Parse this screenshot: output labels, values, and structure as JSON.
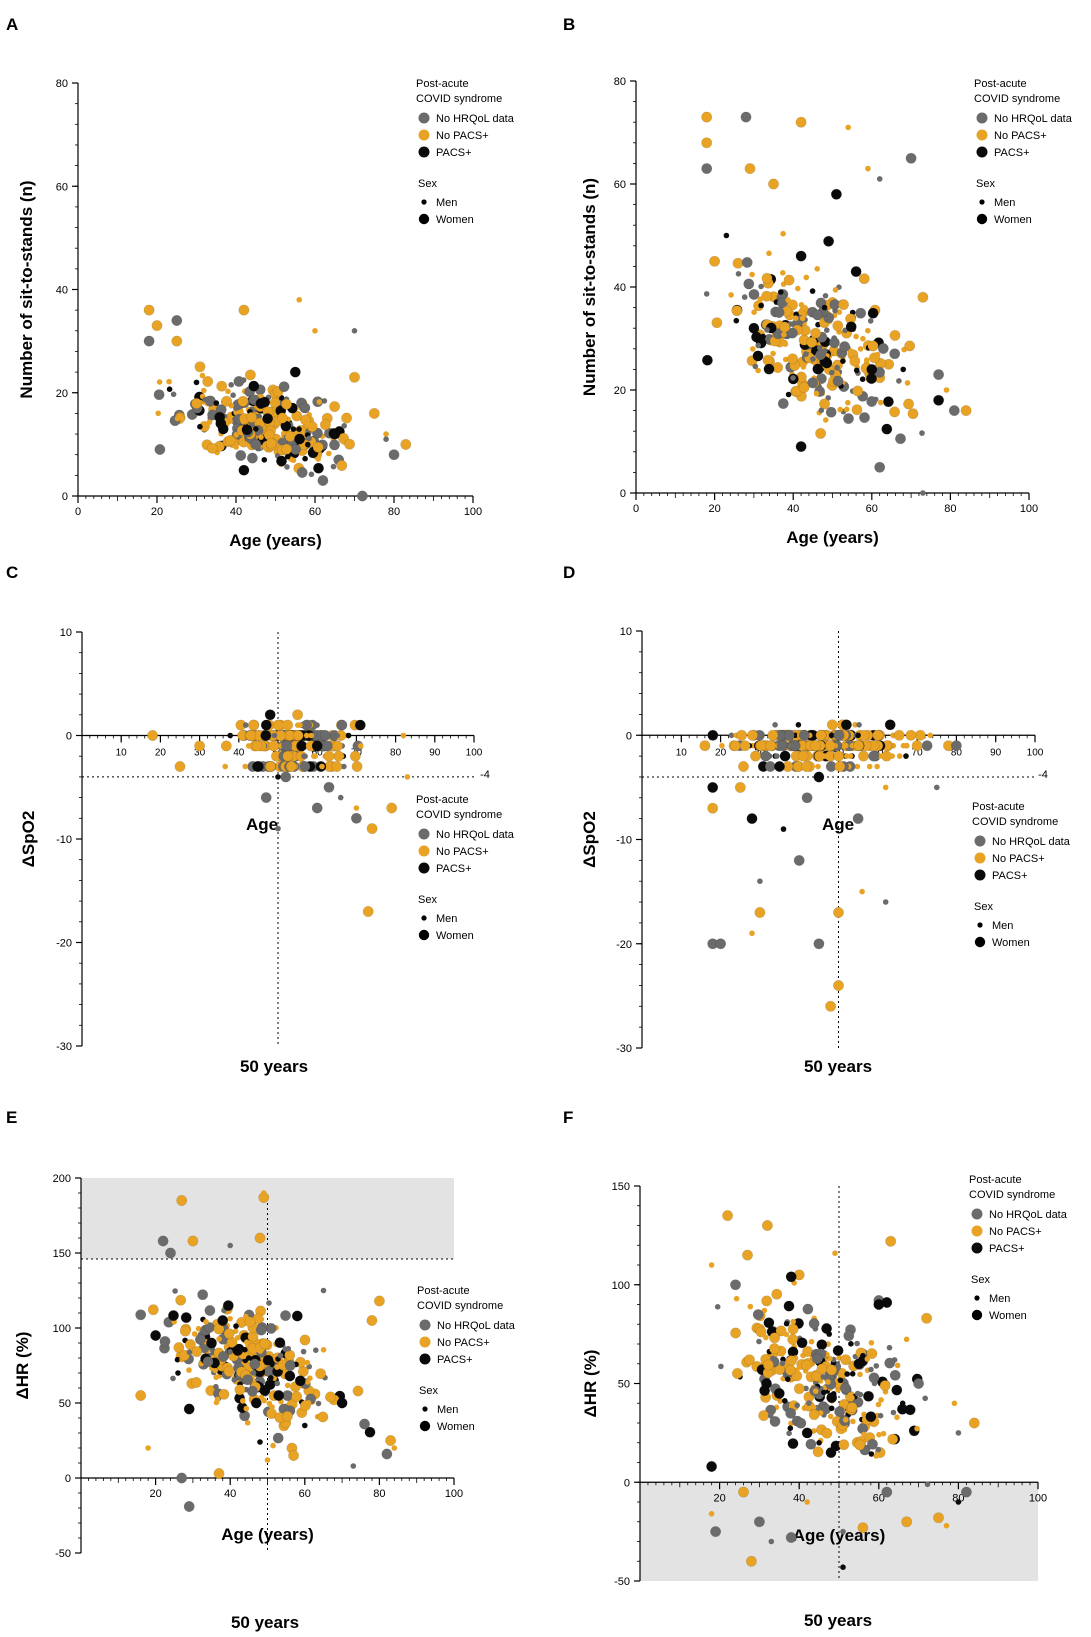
{
  "figure": {
    "colors": {
      "no_hrqol": "#6b6b6b",
      "no_pacs": "#e8a325",
      "pacs": "#0a0a0a",
      "shade": "#e3e3e3"
    }
  },
  "chart_data": [
    {
      "panel": "A",
      "type": "scatter",
      "xlabel": "Age (years)",
      "ylabel": "Number of sit-to-stands (n)",
      "xlim": [
        0,
        100
      ],
      "ylim": [
        0,
        80
      ],
      "xticks": [
        0,
        20,
        40,
        60,
        80,
        100
      ],
      "yticks": [
        0,
        20,
        40,
        60,
        80
      ],
      "legend": {
        "title_line1": "Post-acute",
        "title_line2": "COVID syndrome",
        "groups": [
          "No HRQoL data",
          "No PACS+",
          "PACS+"
        ],
        "sex_title": "Sex",
        "sex": [
          "Men",
          "Women"
        ],
        "position": "top-right"
      },
      "cloud": {
        "ageMean": 46,
        "ageSd": 15,
        "ageMin": 16,
        "ageMax": 84,
        "base": 22,
        "slope": -0.17,
        "noise": 5.5
      },
      "series": [
        {
          "name": "No PACS+",
          "points": [
            [
              18,
              36
            ],
            [
              42,
              36
            ],
            [
              56,
              38
            ],
            [
              20,
              33
            ],
            [
              25,
              30
            ],
            [
              60,
              32
            ],
            [
              70,
              23
            ],
            [
              75,
              16
            ],
            [
              78,
              12
            ],
            [
              83,
              10
            ]
          ]
        },
        {
          "name": "No HRQoL data",
          "points": [
            [
              18,
              30
            ],
            [
              25,
              34
            ],
            [
              70,
              32
            ],
            [
              62,
              3
            ],
            [
              72,
              0
            ],
            [
              78,
              11
            ],
            [
              80,
              8
            ],
            [
              45,
              10
            ],
            [
              40,
              17
            ]
          ]
        },
        {
          "name": "PACS+",
          "points": [
            [
              42,
              5
            ],
            [
              55,
              24
            ],
            [
              30,
              22
            ],
            [
              48,
              15
            ],
            [
              65,
              12
            ],
            [
              35,
              18
            ]
          ]
        }
      ]
    },
    {
      "panel": "B",
      "type": "scatter",
      "xlabel": "Age (years)",
      "ylabel": "Number of sit-to-stands (n)",
      "xlim": [
        0,
        100
      ],
      "ylim": [
        0,
        80
      ],
      "xticks": [
        0,
        20,
        40,
        60,
        80,
        100
      ],
      "yticks": [
        0,
        20,
        40,
        60,
        80
      ],
      "legend": {
        "title_line1": "Post-acute",
        "title_line2": "COVID syndrome",
        "groups": [
          "No HRQoL data",
          "No PACS+",
          "PACS+"
        ],
        "sex_title": "Sex",
        "sex": [
          "Men",
          "Women"
        ],
        "position": "top-right"
      },
      "cloud": {
        "ageMean": 46,
        "ageSd": 15,
        "ageMin": 16,
        "ageMax": 84,
        "base": 44,
        "slope": -0.35,
        "noise": 9
      },
      "series": [
        {
          "name": "No PACS+",
          "points": [
            [
              18,
              73
            ],
            [
              42,
              72
            ],
            [
              54,
              71
            ],
            [
              18,
              68
            ],
            [
              29,
              63
            ],
            [
              59,
              63
            ],
            [
              35,
              60
            ],
            [
              73,
              38
            ],
            [
              79,
              20
            ],
            [
              84,
              16
            ],
            [
              20,
              45
            ]
          ]
        },
        {
          "name": "No HRQoL data",
          "points": [
            [
              28,
              73
            ],
            [
              18,
              63
            ],
            [
              62,
              61
            ],
            [
              70,
              65
            ],
            [
              62,
              5
            ],
            [
              73,
              0
            ],
            [
              77,
              23
            ],
            [
              81,
              16
            ],
            [
              45,
              26
            ]
          ]
        },
        {
          "name": "PACS+",
          "points": [
            [
              42,
              9
            ],
            [
              51,
              58
            ],
            [
              23,
              50
            ],
            [
              42,
              46
            ],
            [
              56,
              43
            ],
            [
              68,
              24
            ],
            [
              77,
              18
            ],
            [
              30,
              32
            ],
            [
              48,
              36
            ],
            [
              60,
              24
            ]
          ]
        }
      ]
    },
    {
      "panel": "C",
      "type": "scatter",
      "xlabel": "Age",
      "ylabel": "ΔSpO2",
      "xlim": [
        0,
        100
      ],
      "ylim": [
        -30,
        10
      ],
      "xticks": [
        10,
        20,
        30,
        40,
        50,
        60,
        70,
        80,
        90,
        100
      ],
      "yticks": [
        -30,
        -20,
        -10,
        0,
        10
      ],
      "refline_x": 50,
      "refline_x_label": "50 years",
      "refline_y": -4,
      "refline_y_label": "-4",
      "legend": {
        "title_line1": "Post-acute",
        "title_line2": "COVID syndrome",
        "groups": [
          "No HRQoL data",
          "No PACS+",
          "PACS+"
        ],
        "sex_title": "Sex",
        "sex": [
          "Men",
          "Women"
        ],
        "position": "bottom-right"
      },
      "cloud": {
        "ageMean": 55,
        "ageSd": 9,
        "ageMin": 17,
        "ageMax": 84,
        "levels": [
          0,
          -1,
          -3,
          -2,
          1
        ],
        "weights": [
          0.42,
          0.3,
          0.12,
          0.1,
          0.06
        ]
      },
      "series": [
        {
          "name": "No PACS+",
          "points": [
            [
              18,
              0
            ],
            [
              55,
              2
            ],
            [
              70,
              -7
            ],
            [
              74,
              -9
            ],
            [
              79,
              -7
            ],
            [
              83,
              -4
            ],
            [
              73,
              -17
            ],
            [
              65,
              -3
            ],
            [
              82,
              0
            ],
            [
              30,
              -1
            ],
            [
              25,
              -3
            ]
          ]
        },
        {
          "name": "No HRQoL data",
          "points": [
            [
              47,
              -6
            ],
            [
              60,
              -7
            ],
            [
              66,
              -6
            ],
            [
              70,
              -8
            ],
            [
              63,
              -5
            ],
            [
              50,
              -9
            ],
            [
              52,
              -4
            ]
          ]
        },
        {
          "name": "PACS+",
          "points": [
            [
              48,
              2
            ],
            [
              71,
              1
            ],
            [
              50,
              -4
            ],
            [
              45,
              -3
            ],
            [
              60,
              -1
            ],
            [
              68,
              0
            ]
          ]
        }
      ]
    },
    {
      "panel": "D",
      "type": "scatter",
      "xlabel": "Age",
      "ylabel": "ΔSpO2",
      "xlim": [
        0,
        100
      ],
      "ylim": [
        -30,
        10
      ],
      "xticks": [
        10,
        20,
        30,
        40,
        50,
        60,
        70,
        80,
        90,
        100
      ],
      "yticks": [
        -30,
        -20,
        -10,
        0,
        10
      ],
      "refline_x": 50,
      "refline_x_label": "50 years",
      "refline_y": -4,
      "refline_y_label": "-4",
      "legend": {
        "title_line1": "Post-acute",
        "title_line2": "COVID syndrome",
        "groups": [
          "No HRQoL data",
          "No PACS+",
          "PACS+"
        ],
        "sex_title": "Sex",
        "sex": [
          "Men",
          "Women"
        ],
        "position": "bottom-right"
      },
      "cloud": {
        "ageMean": 46,
        "ageSd": 15,
        "ageMin": 16,
        "ageMax": 84,
        "levels": [
          -1,
          0,
          -2,
          -3,
          1
        ],
        "weights": [
          0.42,
          0.3,
          0.13,
          0.1,
          0.05
        ]
      },
      "series": [
        {
          "name": "No PACS+",
          "points": [
            [
              18,
              -7
            ],
            [
              30,
              -17
            ],
            [
              28,
              -19
            ],
            [
              48,
              -26
            ],
            [
              50,
              -17
            ],
            [
              56,
              -15
            ],
            [
              50,
              -24
            ],
            [
              25,
              -5
            ],
            [
              62,
              -5
            ],
            [
              70,
              -1
            ],
            [
              78,
              -1
            ]
          ]
        },
        {
          "name": "No HRQoL data",
          "points": [
            [
              18,
              -20
            ],
            [
              20,
              -20
            ],
            [
              30,
              -14
            ],
            [
              40,
              -12
            ],
            [
              45,
              -20
            ],
            [
              62,
              -16
            ],
            [
              42,
              -6
            ],
            [
              55,
              -8
            ],
            [
              75,
              -5
            ],
            [
              80,
              -1
            ]
          ]
        },
        {
          "name": "PACS+",
          "points": [
            [
              18,
              -5
            ],
            [
              28,
              -8
            ],
            [
              36,
              -9
            ],
            [
              35,
              -3
            ],
            [
              52,
              1
            ],
            [
              55,
              0
            ],
            [
              45,
              -4
            ]
          ]
        }
      ]
    },
    {
      "panel": "E",
      "type": "scatter",
      "xlabel": "Age (years)",
      "ylabel": "ΔHR (%)",
      "xlim": [
        0,
        100
      ],
      "ylim": [
        -50,
        200
      ],
      "xticks": [
        20,
        40,
        60,
        80,
        100
      ],
      "yticks": [
        -50,
        0,
        50,
        100,
        150,
        200
      ],
      "refline_x": 50,
      "refline_x_label": "50 years",
      "refline_y": 146,
      "shade": [
        146,
        200
      ],
      "legend": {
        "title_line1": "Post-acute",
        "title_line2": "COVID syndrome",
        "groups": [
          "No HRQoL data",
          "No PACS+",
          "PACS+"
        ],
        "sex_title": "Sex",
        "sex": [
          "Men",
          "Women"
        ],
        "position": "right"
      },
      "cloud": {
        "ageMean": 45,
        "ageSd": 15,
        "ageMin": 16,
        "ageMax": 84,
        "base": 118,
        "slope": -0.95,
        "noise": 25
      },
      "series": [
        {
          "name": "No PACS+",
          "points": [
            [
              27,
              185
            ],
            [
              49,
              187
            ],
            [
              49,
              190
            ],
            [
              30,
              158
            ],
            [
              48,
              160
            ],
            [
              18,
              20
            ],
            [
              16,
              55
            ],
            [
              37,
              3
            ],
            [
              50,
              12
            ],
            [
              57,
              15
            ],
            [
              83,
              25
            ],
            [
              84,
              20
            ],
            [
              78,
              105
            ],
            [
              80,
              118
            ]
          ]
        },
        {
          "name": "No HRQoL data",
          "points": [
            [
              22,
              158
            ],
            [
              24,
              150
            ],
            [
              40,
              155
            ],
            [
              29,
              -19
            ],
            [
              27,
              0
            ],
            [
              73,
              8
            ],
            [
              76,
              36
            ],
            [
              82,
              16
            ],
            [
              65,
              125
            ]
          ]
        },
        {
          "name": "PACS+",
          "points": [
            [
              20,
              95
            ],
            [
              29,
              46
            ],
            [
              48,
              24
            ],
            [
              58,
              108
            ],
            [
              47,
              50
            ],
            [
              60,
              35
            ],
            [
              70,
              50
            ],
            [
              35,
              90
            ],
            [
              45,
              80
            ],
            [
              53,
              55
            ],
            [
              38,
              105
            ],
            [
              26,
              70
            ],
            [
              42,
              85
            ],
            [
              56,
              68
            ]
          ]
        }
      ]
    },
    {
      "panel": "F",
      "type": "scatter",
      "xlabel": "Age (years)",
      "ylabel": "ΔHR (%)",
      "xlim": [
        0,
        100
      ],
      "ylim": [
        -50,
        150
      ],
      "xticks": [
        20,
        40,
        60,
        80,
        100
      ],
      "yticks": [
        -50,
        0,
        50,
        100,
        150
      ],
      "refline_x": 50,
      "refline_x_label": "50 years",
      "shade": [
        -50,
        0
      ],
      "legend": {
        "title_line1": "Post-acute",
        "title_line2": "COVID syndrome",
        "groups": [
          "No HRQoL data",
          "No PACS+",
          "PACS+"
        ],
        "sex_title": "Sex",
        "sex": [
          "Men",
          "Women"
        ],
        "position": "top-right"
      },
      "cloud": {
        "ageMean": 46,
        "ageSd": 15,
        "ageMin": 16,
        "ageMax": 84,
        "base": 85,
        "slope": -0.75,
        "noise": 22
      },
      "series": [
        {
          "name": "No PACS+",
          "points": [
            [
              22,
              135
            ],
            [
              32,
              130
            ],
            [
              18,
              110
            ],
            [
              27,
              115
            ],
            [
              40,
              105
            ],
            [
              49,
              116
            ],
            [
              63,
              122
            ],
            [
              72,
              83
            ],
            [
              18,
              -16
            ],
            [
              26,
              -5
            ],
            [
              28,
              -40
            ],
            [
              42,
              -10
            ],
            [
              56,
              -23
            ],
            [
              67,
              -20
            ],
            [
              77,
              -22
            ],
            [
              75,
              -18
            ],
            [
              84,
              30
            ],
            [
              79,
              40
            ]
          ]
        },
        {
          "name": "No HRQoL data",
          "points": [
            [
              24,
              100
            ],
            [
              19,
              -25
            ],
            [
              33,
              -30
            ],
            [
              30,
              -20
            ],
            [
              38,
              -28
            ],
            [
              51,
              -25
            ],
            [
              62,
              -5
            ],
            [
              82,
              -5
            ],
            [
              80,
              25
            ],
            [
              60,
              92
            ],
            [
              70,
              50
            ]
          ]
        },
        {
          "name": "PACS+",
          "points": [
            [
              18,
              8
            ],
            [
              38,
              104
            ],
            [
              51,
              -43
            ],
            [
              60,
              90
            ],
            [
              62,
              91
            ],
            [
              45,
              20
            ],
            [
              48,
              15
            ],
            [
              42,
              25
            ],
            [
              80,
              -10
            ],
            [
              55,
              60
            ],
            [
              35,
              45
            ],
            [
              66,
              40
            ]
          ]
        }
      ]
    }
  ]
}
